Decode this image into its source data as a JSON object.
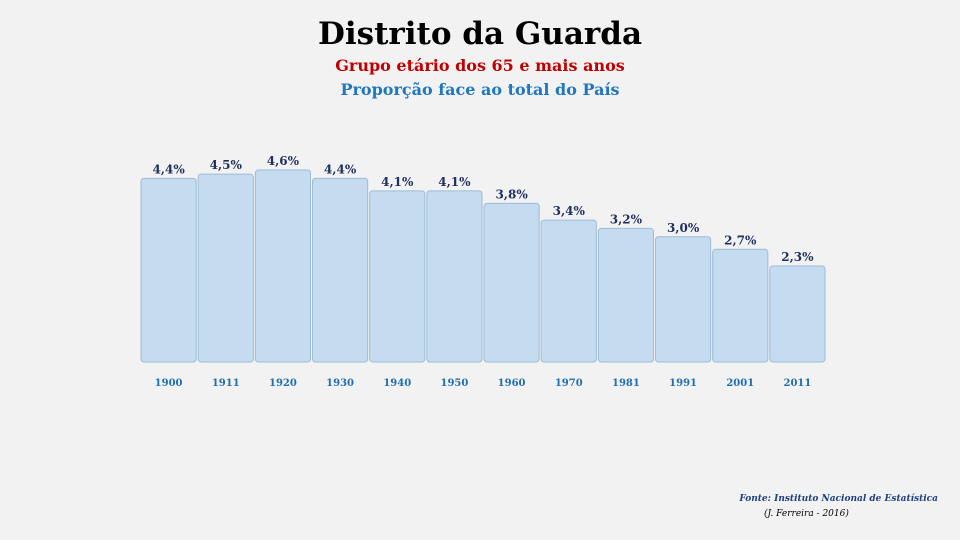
{
  "chart_data": {
    "type": "bar",
    "title": "Distrito da Guarda",
    "subtitle": "Grupo etário dos 65 e mais anos",
    "subtitle2": "Proporção face ao total do País",
    "categories": [
      "1900",
      "1911",
      "1920",
      "1930",
      "1940",
      "1950",
      "1960",
      "1970",
      "1981",
      "1991",
      "2001",
      "2011"
    ],
    "values": [
      4.4,
      4.5,
      4.6,
      4.4,
      4.1,
      4.1,
      3.8,
      3.4,
      3.2,
      3.0,
      2.7,
      2.3
    ],
    "data_labels": [
      "4,4%",
      "4,5%",
      "4,6%",
      "4,4%",
      "4,1%",
      "4,1%",
      "3,8%",
      "3,4%",
      "3,2%",
      "3,0%",
      "2,7%",
      "2,3%"
    ],
    "ylim": [
      0,
      4.6
    ],
    "grid": false,
    "colors": {
      "bar_fill": "#c5dbef",
      "bar_stroke": "#9dbbd6",
      "label": "#1f2f5f",
      "tick": "#1f6fb0"
    }
  },
  "footer": {
    "source": "Fonte: Instituto Nacional de Estatística",
    "author": "(J. Ferreira - 2016)"
  }
}
